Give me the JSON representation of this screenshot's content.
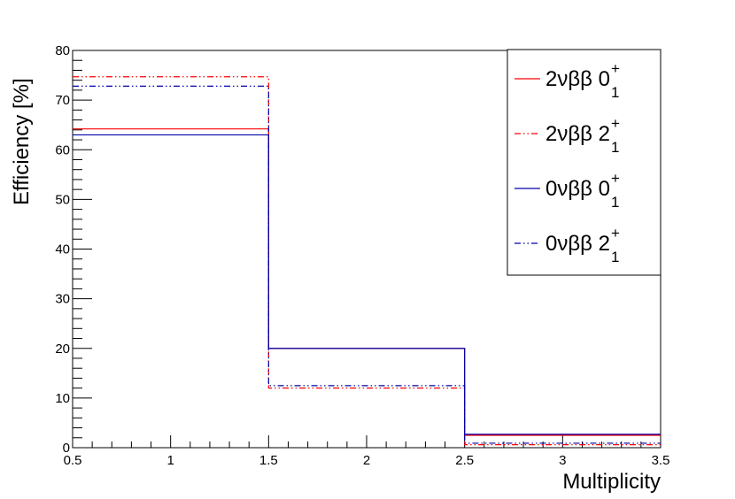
{
  "chart_data": {
    "type": "histogram-step",
    "xlabel": "Multiplicity",
    "ylabel": "Efficiency  [%]",
    "xlim": [
      0.5,
      3.5
    ],
    "ylim": [
      0,
      80
    ],
    "x_ticks": [
      "0.5",
      "1",
      "1.5",
      "2",
      "2.5",
      "3",
      "3.5"
    ],
    "y_ticks": [
      "0",
      "10",
      "20",
      "30",
      "40",
      "50",
      "60",
      "70",
      "80"
    ],
    "bin_edges": [
      0.5,
      1.5,
      2.5,
      3.5
    ],
    "grid": false,
    "legend_position": "top-right",
    "series": [
      {
        "name": "2νββ 0",
        "superscript": "+",
        "subscript": "1",
        "color": "#ff0000",
        "dash": "solid",
        "values": [
          64.2,
          20.0,
          2.5
        ]
      },
      {
        "name": "2νββ 2",
        "superscript": "+",
        "subscript": "1",
        "color": "#ff0000",
        "dash": "dashdotdot",
        "values": [
          74.7,
          12.0,
          0.6
        ]
      },
      {
        "name": "0νββ 0",
        "superscript": "+",
        "subscript": "1",
        "color": "#0000aa",
        "dash": "solid",
        "values": [
          63.0,
          20.0,
          2.7
        ]
      },
      {
        "name": "0νββ 2",
        "superscript": "+",
        "subscript": "1",
        "color": "#0000aa",
        "dash": "dashdotdot",
        "values": [
          72.8,
          12.5,
          0.9
        ]
      }
    ]
  }
}
